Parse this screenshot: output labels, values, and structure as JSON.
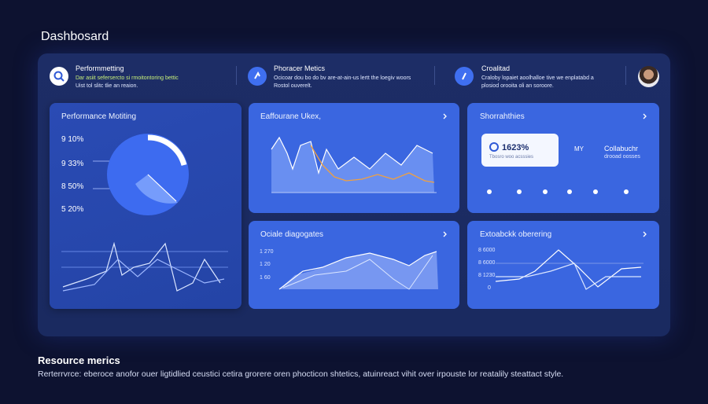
{
  "header": {
    "title": "Dashbosard"
  },
  "summary": [
    {
      "title": "Performmetting",
      "text": [
        "Dar asiit sefersercto si rmoitontoring bettic",
        "Uist tol slitc tlie an reaion."
      ]
    },
    {
      "title": "Phoracer Metics",
      "text": [
        "Ocicoar dou bo do bv are-at-ain-us lertt the loegiv woors",
        "Rostol ouverelt."
      ]
    },
    {
      "title": "Croalitad",
      "text": [
        "Craloby lopaiet aoolhalloe tive we enplatabd a",
        "plosiod orooita oli an soroore."
      ]
    }
  ],
  "cards": [
    {
      "title": "Performance Motiting",
      "labels": [
        "9 10%",
        "9 33%",
        "8 50%",
        "5 20%"
      ]
    },
    {
      "title": "Eaffourane Ukex,"
    },
    {
      "title": "Shorrahthies",
      "stat": "1623%",
      "stat_note": "Tbosro woo acsssies",
      "side_label": "MY",
      "side_title": "Collabuchr",
      "side_note": "drooad oosses"
    },
    {
      "title": "Ociale diagogates",
      "labels": [
        "1 270",
        "1 20",
        "1 60"
      ]
    },
    {
      "title": "Extoabckk oberering",
      "labels": [
        "8 6000",
        "8 1230",
        "0"
      ]
    }
  ],
  "footer": {
    "title": "Resource merics",
    "text": "Rerterrvrce: eberoce anofor ouer ligtidlied ceustici cetira grorere oren phocticon shtetics, atuinreact vihit over irpouste lor reatalily steattact style."
  }
}
